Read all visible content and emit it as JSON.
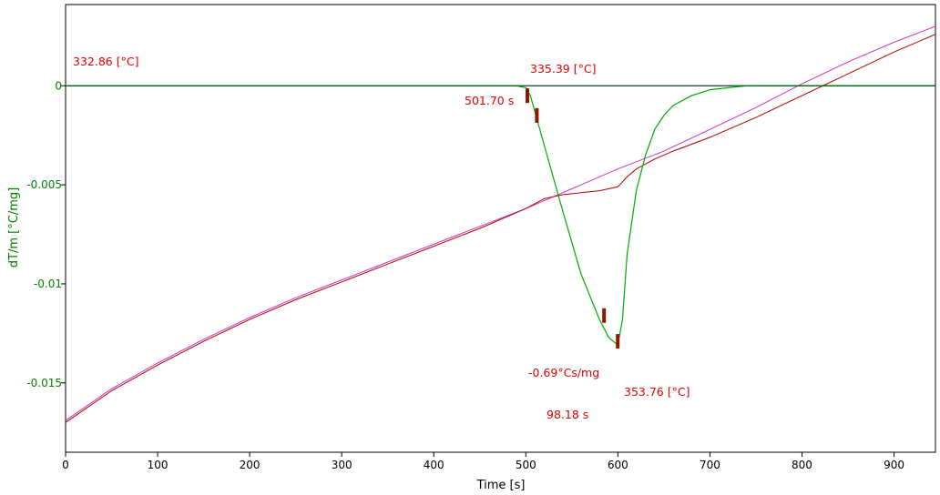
{
  "chart_data": {
    "type": "line",
    "xlabel": "Time [s]",
    "ylabel": "dT/m  [°C/mg]",
    "xlim": [
      0,
      945
    ],
    "ylim": [
      -0.0185,
      0.0041
    ],
    "x_ticks": [
      0,
      100,
      200,
      300,
      400,
      500,
      600,
      700,
      800,
      900
    ],
    "y_ticks": [
      0,
      -0.005,
      -0.01,
      -0.015
    ],
    "y_tick_labels": [
      "0",
      "-0.005",
      "-0.01",
      "-0.015"
    ],
    "grid": false,
    "colors": {
      "axis": "#000000",
      "ylabel": "#008000",
      "annotations": "#e00000",
      "marker": "#8b1a00"
    },
    "series": [
      {
        "color": "#0000cc",
        "x": [
          0,
          945
        ],
        "y": [
          0,
          0
        ]
      },
      {
        "color": "#cc33cc",
        "x": [
          0,
          50,
          100,
          150,
          200,
          250,
          300,
          350,
          400,
          450,
          500,
          550,
          600,
          650,
          700,
          750,
          800,
          850,
          900,
          945
        ],
        "y": [
          -0.0169,
          -0.0153,
          -0.014,
          -0.0128,
          -0.0117,
          -0.0107,
          -0.0098,
          -0.0089,
          -0.008,
          -0.0071,
          -0.0062,
          -0.0052,
          -0.0042,
          -0.0033,
          -0.0022,
          -0.0011,
          0.0001,
          0.0012,
          0.0022,
          0.003
        ]
      },
      {
        "color": "#b00000",
        "x": [
          0,
          50,
          100,
          150,
          200,
          250,
          300,
          350,
          400,
          450,
          500,
          520,
          540,
          560,
          580,
          600,
          610,
          620,
          640,
          660,
          700,
          750,
          800,
          850,
          900,
          945
        ],
        "y": [
          -0.017,
          -0.0154,
          -0.0141,
          -0.0129,
          -0.0118,
          -0.0108,
          -0.0099,
          -0.009,
          -0.0081,
          -0.0072,
          -0.0062,
          -0.0057,
          -0.0055,
          -0.0054,
          -0.0053,
          -0.0051,
          -0.0046,
          -0.0042,
          -0.0037,
          -0.0033,
          -0.0026,
          -0.0016,
          -0.0005,
          0.0006,
          0.0017,
          0.0026
        ]
      },
      {
        "color": "#00aa00",
        "x": [
          0,
          400,
          490,
          500,
          505,
          520,
          540,
          560,
          580,
          590,
          600,
          605,
          610,
          620,
          630,
          640,
          650,
          660,
          680,
          700,
          720,
          740,
          760,
          780,
          800,
          900,
          945
        ],
        "y": [
          0,
          0,
          0,
          -0.0001,
          -0.0005,
          -0.003,
          -0.0063,
          -0.0095,
          -0.0118,
          -0.0127,
          -0.0131,
          -0.0118,
          -0.0085,
          -0.0053,
          -0.0035,
          -0.0022,
          -0.0015,
          -0.001,
          -0.0005,
          -0.0002,
          -0.0001,
          0,
          0,
          0,
          0,
          0,
          0
        ]
      },
      {
        "color": "#005500",
        "x": [
          0,
          945
        ],
        "y": [
          0,
          0
        ]
      }
    ],
    "markers": [
      {
        "x": 501.7,
        "y": -0.0005
      },
      {
        "x": 512,
        "y": -0.0015
      },
      {
        "x": 585,
        "y": -0.0116
      },
      {
        "x": 599.9,
        "y": -0.0129
      }
    ],
    "annotations": [
      {
        "text": "332.86 [°C]"
      },
      {
        "text": "335.39 [°C]"
      },
      {
        "text": "501.70 s"
      },
      {
        "text": "-0.69°Cs/mg"
      },
      {
        "text": "353.76 [°C]"
      },
      {
        "text": "98.18 s"
      }
    ]
  }
}
